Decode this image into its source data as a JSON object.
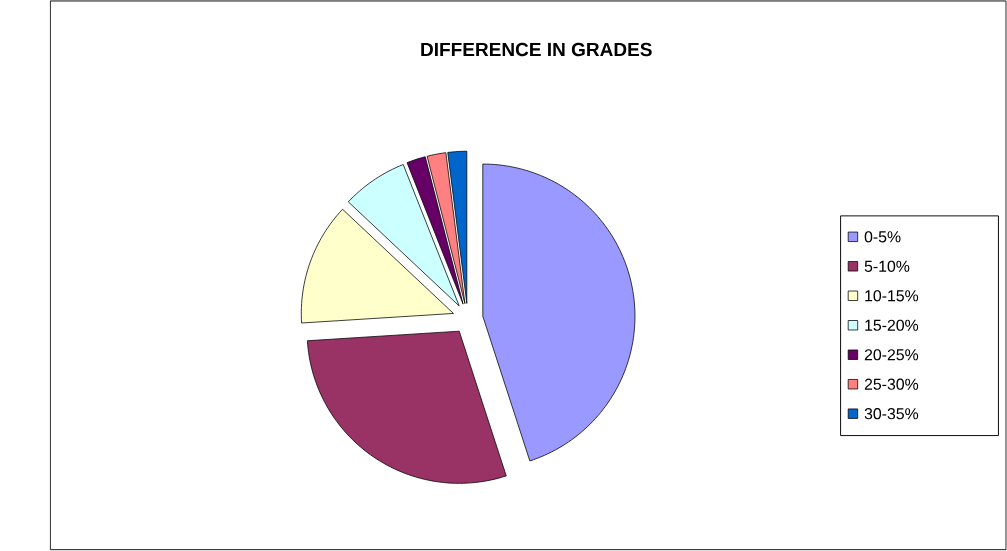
{
  "chart_data": {
    "type": "pie",
    "title": "DIFFERENCE IN GRADES",
    "categories": [
      "0-5%",
      "5-10%",
      "10-15%",
      "15-20%",
      "20-25%",
      "25-30%",
      "30-35%"
    ],
    "values": [
      45,
      29,
      13,
      7,
      2,
      2,
      2
    ],
    "colors": [
      "#9999ff",
      "#993366",
      "#ffffcc",
      "#ccffff",
      "#660066",
      "#ff8080",
      "#0066cc"
    ],
    "legend": "right"
  }
}
